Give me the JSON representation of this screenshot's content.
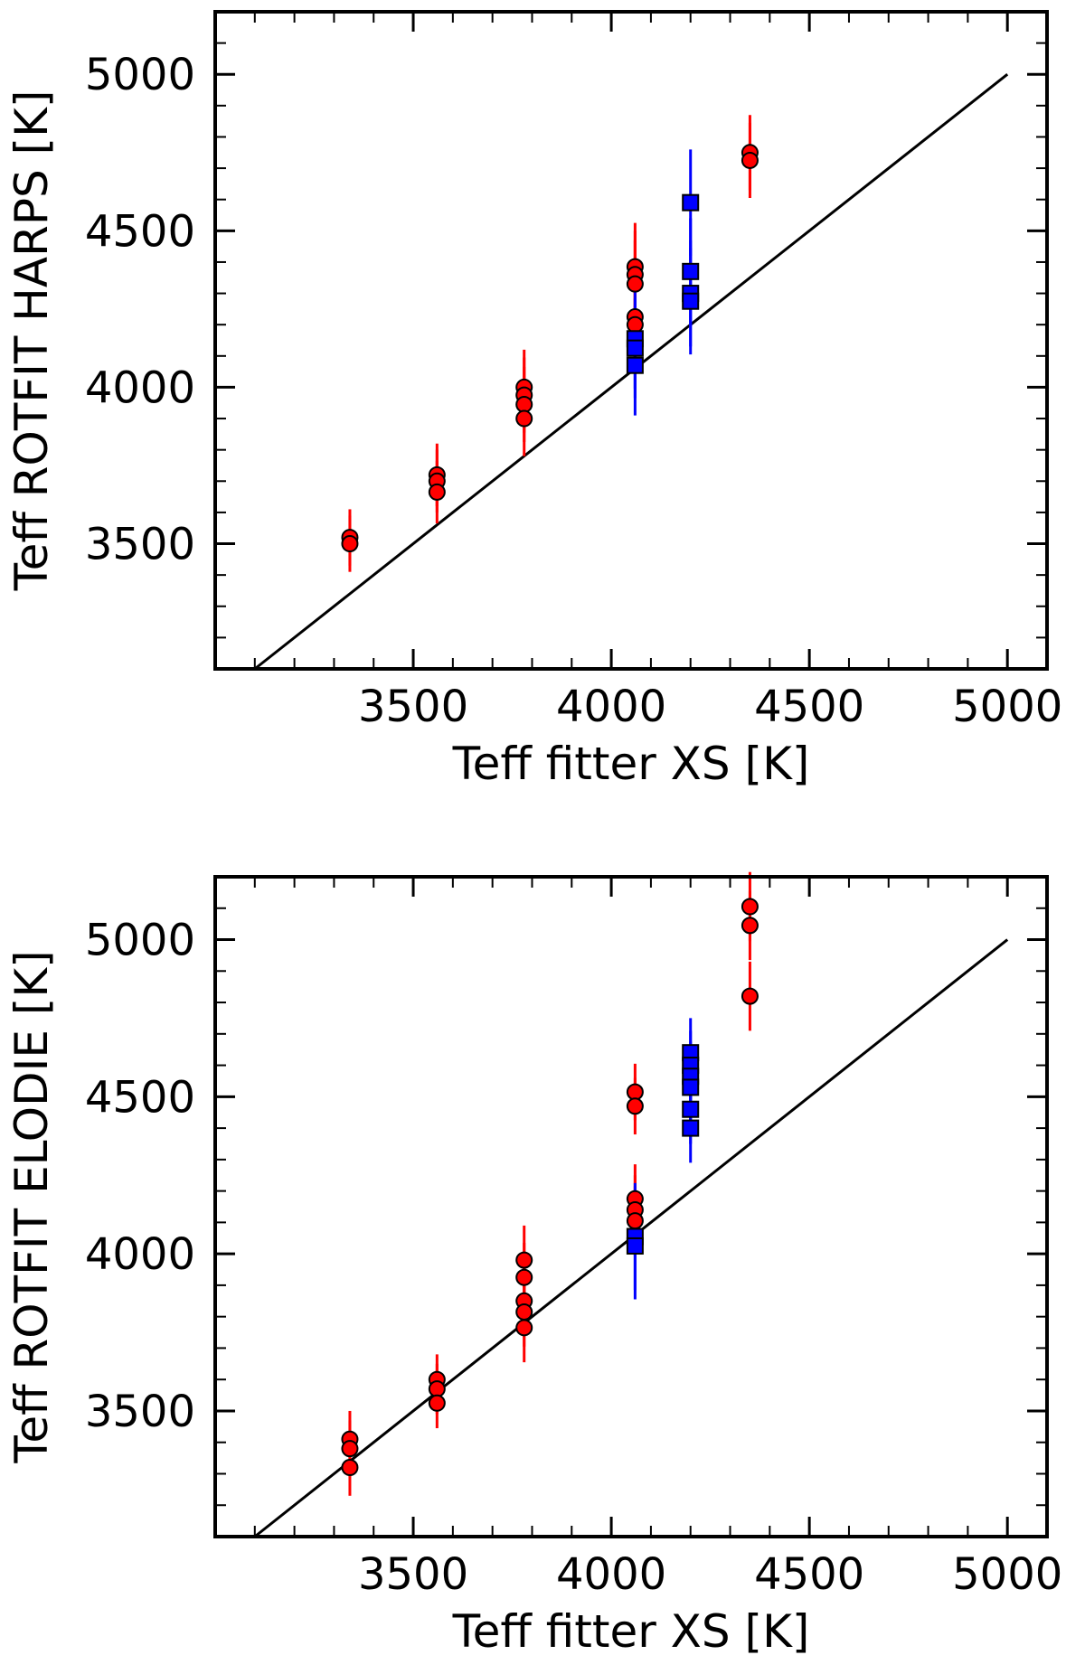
{
  "chart_data": [
    {
      "type": "scatter",
      "xlabel": "Teff fitter XS [K]",
      "ylabel": "Teff ROTFIT HARPS [K]",
      "xlim": [
        3000,
        5100
      ],
      "ylim": [
        3100,
        5200
      ],
      "x_ticks": [
        3500,
        4000,
        4500,
        5000
      ],
      "y_ticks": [
        3500,
        4000,
        4500,
        5000
      ],
      "reference_line": {
        "x": [
          3100,
          5000
        ],
        "y": [
          3100,
          5000
        ]
      },
      "series": [
        {
          "name": "red circles",
          "marker": "circle",
          "color": "#ff0000",
          "points": [
            {
              "x": 3340,
              "y": 3520,
              "err": 90
            },
            {
              "x": 3340,
              "y": 3500,
              "err": 90
            },
            {
              "x": 3560,
              "y": 3720,
              "err": 100
            },
            {
              "x": 3560,
              "y": 3700,
              "err": 100
            },
            {
              "x": 3560,
              "y": 3665,
              "err": 100
            },
            {
              "x": 3780,
              "y": 4000,
              "err": 120
            },
            {
              "x": 3780,
              "y": 3975,
              "err": 120
            },
            {
              "x": 3780,
              "y": 3945,
              "err": 120
            },
            {
              "x": 3780,
              "y": 3900,
              "err": 120
            },
            {
              "x": 4060,
              "y": 4385,
              "err": 140
            },
            {
              "x": 4060,
              "y": 4360,
              "err": 140
            },
            {
              "x": 4060,
              "y": 4330,
              "err": 140
            },
            {
              "x": 4060,
              "y": 4225,
              "err": 140
            },
            {
              "x": 4060,
              "y": 4200,
              "err": 140
            },
            {
              "x": 4350,
              "y": 4750,
              "err": 120
            },
            {
              "x": 4350,
              "y": 4725,
              "err": 120
            }
          ]
        },
        {
          "name": "blue squares",
          "marker": "square",
          "color": "#0000ff",
          "points": [
            {
              "x": 4060,
              "y": 4155,
              "err": 160
            },
            {
              "x": 4060,
              "y": 4125,
              "err": 160
            },
            {
              "x": 4060,
              "y": 4070,
              "err": 160
            },
            {
              "x": 4200,
              "y": 4590,
              "err": 170
            },
            {
              "x": 4200,
              "y": 4370,
              "err": 170
            },
            {
              "x": 4200,
              "y": 4300,
              "err": 170
            },
            {
              "x": 4200,
              "y": 4275,
              "err": 170
            }
          ]
        }
      ]
    },
    {
      "type": "scatter",
      "xlabel": "Teff fitter XS [K]",
      "ylabel": "Teff ROTFIT ELODIE [K]",
      "xlim": [
        3000,
        5100
      ],
      "ylim": [
        3100,
        5200
      ],
      "x_ticks": [
        3500,
        4000,
        4500,
        5000
      ],
      "y_ticks": [
        3500,
        4000,
        4500,
        5000
      ],
      "reference_line": {
        "x": [
          3100,
          5000
        ],
        "y": [
          3100,
          5000
        ]
      },
      "series": [
        {
          "name": "red circles",
          "marker": "circle",
          "color": "#ff0000",
          "points": [
            {
              "x": 3340,
              "y": 3410,
              "err": 90
            },
            {
              "x": 3340,
              "y": 3380,
              "err": 90
            },
            {
              "x": 3340,
              "y": 3320,
              "err": 90
            },
            {
              "x": 3560,
              "y": 3600,
              "err": 80
            },
            {
              "x": 3560,
              "y": 3570,
              "err": 80
            },
            {
              "x": 3560,
              "y": 3525,
              "err": 80
            },
            {
              "x": 3780,
              "y": 3980,
              "err": 110
            },
            {
              "x": 3780,
              "y": 3925,
              "err": 110
            },
            {
              "x": 3780,
              "y": 3850,
              "err": 110
            },
            {
              "x": 3780,
              "y": 3815,
              "err": 110
            },
            {
              "x": 3780,
              "y": 3765,
              "err": 110
            },
            {
              "x": 4060,
              "y": 4515,
              "err": 90
            },
            {
              "x": 4060,
              "y": 4470,
              "err": 90
            },
            {
              "x": 4060,
              "y": 4175,
              "err": 110
            },
            {
              "x": 4060,
              "y": 4140,
              "err": 110
            },
            {
              "x": 4060,
              "y": 4105,
              "err": 110
            },
            {
              "x": 4350,
              "y": 5105,
              "err": 110
            },
            {
              "x": 4350,
              "y": 5045,
              "err": 110
            },
            {
              "x": 4350,
              "y": 4820,
              "err": 110
            }
          ]
        },
        {
          "name": "blue squares",
          "marker": "square",
          "color": "#0000ff",
          "points": [
            {
              "x": 4060,
              "y": 4055,
              "err": 170
            },
            {
              "x": 4060,
              "y": 4025,
              "err": 170
            },
            {
              "x": 4200,
              "y": 4640,
              "err": 110
            },
            {
              "x": 4200,
              "y": 4600,
              "err": 110
            },
            {
              "x": 4200,
              "y": 4565,
              "err": 110
            },
            {
              "x": 4200,
              "y": 4530,
              "err": 110
            },
            {
              "x": 4200,
              "y": 4460,
              "err": 110
            },
            {
              "x": 4200,
              "y": 4400,
              "err": 110
            }
          ]
        }
      ]
    }
  ]
}
